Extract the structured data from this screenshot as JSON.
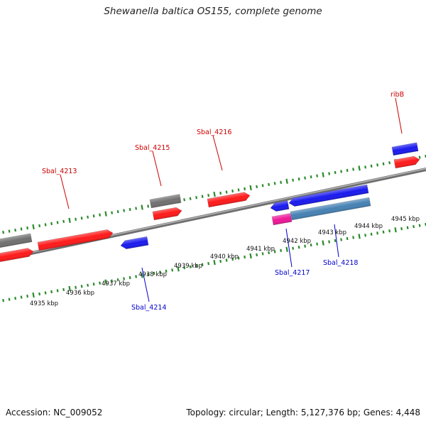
{
  "title": "Shewanella baltica OS155, complete genome",
  "footer": {
    "accession": "Accession: NC_009052",
    "stats": "Topology: circular; Length: 5,127,376 bp; Genes: 4,448"
  },
  "colors": {
    "forward_gene": "#ff1a1a",
    "reverse_gene": "#1a1aee",
    "other_gene": "#707070",
    "highlight_gene": "#ee1899",
    "highlight_gene_2": "#4682b4",
    "label_forward": "#cc0000",
    "label_reverse": "#0000cc",
    "ticks": "#2a8a2a",
    "backbone": "#888888"
  },
  "tick_labels": [
    "4935 kbp",
    "4936 kbp",
    "4937 kbp",
    "4938 kbp",
    "4939 kbp",
    "4940 kbp",
    "4941 kbp",
    "4942 kbp",
    "4943 kbp",
    "4944 kbp",
    "4945 kbp"
  ],
  "gene_labels": [
    {
      "text": "Sbal_4213",
      "strand": "forward"
    },
    {
      "text": "Sbal_4215",
      "strand": "forward"
    },
    {
      "text": "Sbal_4216",
      "strand": "forward"
    },
    {
      "text": "ribB",
      "strand": "forward"
    },
    {
      "text": "Sbal_4214",
      "strand": "reverse"
    },
    {
      "text": "Sbal_4217",
      "strand": "reverse"
    },
    {
      "text": "Sbal_4218",
      "strand": "reverse"
    }
  ]
}
